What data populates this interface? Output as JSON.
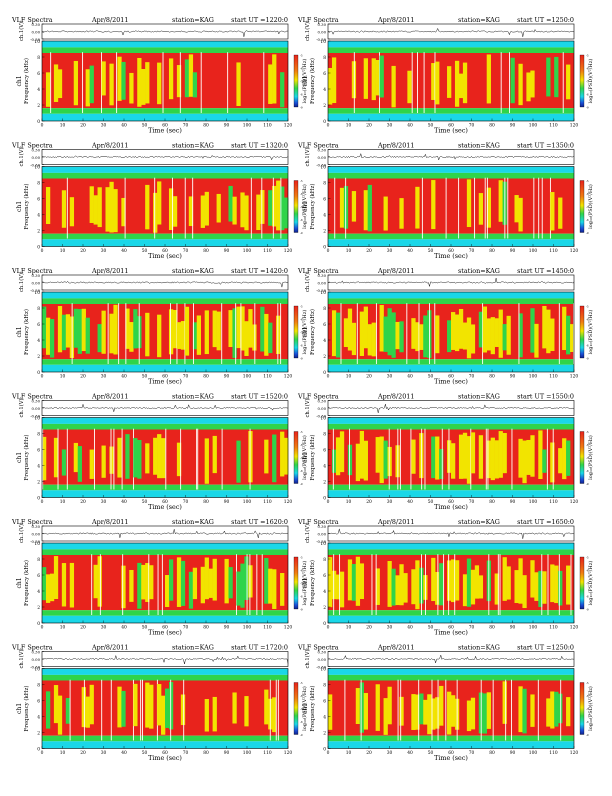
{
  "panel_header": "VLF Spectra",
  "station_label": "station=KAG",
  "start_label": "start  UT  =",
  "colorbar_label": "log₁₀(PSD)(V²/Hz)",
  "colorbar_ticks": [
    "-5",
    "-6",
    "-7",
    "-8",
    "-9"
  ],
  "colors": {
    "spec_red": "#e8231c",
    "spec_yellow": "#f2e400",
    "spec_green": "#2fd44a",
    "spec_cyan": "#1ad7e8",
    "gap_white": "#ffffff"
  },
  "chart_data": [
    {
      "type": "heatmap",
      "date": "Apr/8/2011",
      "start_ut": "1220:0",
      "xlabel": "Time (sec)",
      "ylabel_top": "ch.1(V)",
      "ylabel": "Frequency (kHz)",
      "ylabel_prefix": "ch1",
      "xlim": [
        0,
        120
      ],
      "ylim": [
        0,
        10
      ],
      "trace_ylim": [
        -0.3,
        0.3
      ],
      "x_ticks": [
        0,
        10,
        20,
        30,
        40,
        50,
        60,
        70,
        80,
        90,
        100,
        110,
        120
      ],
      "y_ticks": [
        0,
        2,
        4,
        6,
        8,
        10
      ],
      "trace_ticks": [
        "0.30",
        "0.00",
        "-0.30"
      ],
      "activity": 0.85
    },
    {
      "type": "heatmap",
      "date": "Apr/8/2011",
      "start_ut": "1250:0",
      "xlabel": "Time (sec)",
      "ylabel_top": "ch.1(V)",
      "ylabel": "Frequency (kHz)",
      "ylabel_prefix": "ch1",
      "xlim": [
        0,
        120
      ],
      "ylim": [
        0,
        10
      ],
      "trace_ylim": [
        -0.3,
        0.3
      ],
      "x_ticks": [
        0,
        10,
        20,
        30,
        40,
        50,
        60,
        70,
        80,
        90,
        100,
        110,
        120
      ],
      "y_ticks": [
        0,
        2,
        4,
        6,
        8,
        10
      ],
      "trace_ticks": [
        "0.30",
        "0.00",
        "-0.30"
      ],
      "activity": 0.85
    },
    {
      "type": "heatmap",
      "date": "Apr/8/2011",
      "start_ut": "1320:0",
      "xlabel": "Time (sec)",
      "ylabel_top": "ch.1(V)",
      "ylabel": "Frequency (kHz)",
      "ylabel_prefix": "ch1",
      "xlim": [
        0,
        120
      ],
      "ylim": [
        0,
        10
      ],
      "trace_ylim": [
        -0.3,
        0.3
      ],
      "x_ticks": [
        0,
        10,
        20,
        30,
        40,
        50,
        60,
        70,
        80,
        90,
        100,
        110,
        120
      ],
      "y_ticks": [
        0,
        2,
        4,
        6,
        8,
        10
      ],
      "trace_ticks": [
        "0.30",
        "0.00",
        "-0.30"
      ],
      "activity": 0.9
    },
    {
      "type": "heatmap",
      "date": "Apr/8/2011",
      "start_ut": "1350:0",
      "xlabel": "Time (sec)",
      "ylabel_top": "ch.1(V)",
      "ylabel": "Frequency (kHz)",
      "ylabel_prefix": "ch1",
      "xlim": [
        0,
        120
      ],
      "ylim": [
        0,
        10
      ],
      "trace_ylim": [
        -0.3,
        0.3
      ],
      "x_ticks": [
        0,
        10,
        20,
        30,
        40,
        50,
        60,
        70,
        80,
        90,
        100,
        110,
        120
      ],
      "y_ticks": [
        0,
        2,
        4,
        6,
        8,
        10
      ],
      "trace_ticks": [
        "0.30",
        "0.00",
        "-0.30"
      ],
      "activity": 0.9
    },
    {
      "type": "heatmap",
      "date": "Apr/8/2011",
      "start_ut": "1420:0",
      "xlabel": "Time (sec)",
      "ylabel_top": "ch.1(V)",
      "ylabel": "Frequency (kHz)",
      "ylabel_prefix": "ch1",
      "xlim": [
        0,
        120
      ],
      "ylim": [
        0,
        10
      ],
      "trace_ylim": [
        -0.3,
        0.3
      ],
      "x_ticks": [
        0,
        10,
        20,
        30,
        40,
        50,
        60,
        70,
        80,
        90,
        100,
        110,
        120
      ],
      "y_ticks": [
        0,
        2,
        4,
        6,
        8,
        10
      ],
      "trace_ticks": [
        "0.30",
        "0.00",
        "-0.30"
      ],
      "activity": 0.55
    },
    {
      "type": "heatmap",
      "date": "Apr/8/2011",
      "start_ut": "1450:0",
      "xlabel": "Time (sec)",
      "ylabel_top": "ch.1(V)",
      "ylabel": "Frequency (kHz)",
      "ylabel_prefix": "ch1",
      "xlim": [
        0,
        120
      ],
      "ylim": [
        0,
        10
      ],
      "trace_ylim": [
        -0.3,
        0.3
      ],
      "x_ticks": [
        0,
        10,
        20,
        30,
        40,
        50,
        60,
        70,
        80,
        90,
        100,
        110,
        120
      ],
      "y_ticks": [
        0,
        2,
        4,
        6,
        8,
        10
      ],
      "trace_ticks": [
        "0.30",
        "0.00",
        "-0.30"
      ],
      "activity": 0.55
    },
    {
      "type": "heatmap",
      "date": "Apr/8/2011",
      "start_ut": "1520:0",
      "xlabel": "Time (sec)",
      "ylabel_top": "ch.1(V)",
      "ylabel": "Frequency (kHz)",
      "ylabel_prefix": "ch1",
      "xlim": [
        0,
        120
      ],
      "ylim": [
        0,
        10
      ],
      "trace_ylim": [
        -0.3,
        0.3
      ],
      "x_ticks": [
        0,
        10,
        20,
        30,
        40,
        50,
        60,
        70,
        80,
        90,
        100,
        110,
        120
      ],
      "y_ticks": [
        0,
        2,
        4,
        6,
        8,
        10
      ],
      "trace_ticks": [
        "0.30",
        "0.00",
        "-0.30"
      ],
      "activity": 0.75
    },
    {
      "type": "heatmap",
      "date": "Apr/8/2011",
      "start_ut": "1550:0",
      "xlabel": "Time (sec)",
      "ylabel_top": "ch.1(V)",
      "ylabel": "Frequency (kHz)",
      "ylabel_prefix": "ch1",
      "xlim": [
        0,
        120
      ],
      "ylim": [
        0,
        10
      ],
      "trace_ylim": [
        -0.3,
        0.3
      ],
      "x_ticks": [
        0,
        10,
        20,
        30,
        40,
        50,
        60,
        70,
        80,
        90,
        100,
        110,
        120
      ],
      "y_ticks": [
        0,
        2,
        4,
        6,
        8,
        10
      ],
      "trace_ticks": [
        "0.30",
        "0.00",
        "-0.30"
      ],
      "activity": 0.7
    },
    {
      "type": "heatmap",
      "date": "Apr/8/2011",
      "start_ut": "1620:0",
      "xlabel": "Time (sec)",
      "ylabel_top": "ch.1(V)",
      "ylabel": "Frequency (kHz)",
      "ylabel_prefix": "ch1",
      "xlim": [
        0,
        120
      ],
      "ylim": [
        0,
        10
      ],
      "trace_ylim": [
        -0.3,
        0.3
      ],
      "x_ticks": [
        0,
        10,
        20,
        30,
        40,
        50,
        60,
        70,
        80,
        90,
        100,
        110,
        120
      ],
      "y_ticks": [
        0,
        2,
        4,
        6,
        8,
        10
      ],
      "trace_ticks": [
        "0.30",
        "0.00",
        "-0.30"
      ],
      "activity": 0.8
    },
    {
      "type": "heatmap",
      "date": "Apr/8/2011",
      "start_ut": "1650:0",
      "xlabel": "Time (sec)",
      "ylabel_top": "ch.1(V)",
      "ylabel": "Frequency (kHz)",
      "ylabel_prefix": "ch1",
      "xlim": [
        0,
        120
      ],
      "ylim": [
        0,
        10
      ],
      "trace_ylim": [
        -0.3,
        0.3
      ],
      "x_ticks": [
        0,
        10,
        20,
        30,
        40,
        50,
        60,
        70,
        80,
        90,
        100,
        110,
        120
      ],
      "y_ticks": [
        0,
        2,
        4,
        6,
        8,
        10
      ],
      "trace_ticks": [
        "0.30",
        "0.00",
        "-0.30"
      ],
      "activity": 0.6
    },
    {
      "type": "heatmap",
      "date": "Apr/8/2011",
      "start_ut": "1720:0",
      "xlabel": "Time (sec)",
      "ylabel_top": "ch.1(V)",
      "ylabel": "Frequency (kHz)",
      "ylabel_prefix": "ch1",
      "xlim": [
        0,
        120
      ],
      "ylim": [
        0,
        10
      ],
      "trace_ylim": [
        -0.3,
        0.3
      ],
      "x_ticks": [
        0,
        10,
        20,
        30,
        40,
        50,
        60,
        70,
        80,
        90,
        100,
        110,
        120
      ],
      "y_ticks": [
        0,
        2,
        4,
        6,
        8,
        10
      ],
      "trace_ticks": [
        "0.30",
        "0.00",
        "-0.30"
      ],
      "activity": 0.8
    },
    {
      "type": "heatmap",
      "date": "Apr/8/2011",
      "start_ut": "1250:0",
      "xlabel": "Time (sec)",
      "ylabel_top": "ch.1(V)",
      "ylabel": "Frequency (kHz)",
      "ylabel_prefix": "ch1",
      "xlim": [
        0,
        120
      ],
      "ylim": [
        0,
        10
      ],
      "trace_ylim": [
        -0.3,
        0.3
      ],
      "x_ticks": [
        0,
        10,
        20,
        30,
        40,
        50,
        60,
        70,
        80,
        90,
        100,
        110,
        120
      ],
      "y_ticks": [
        0,
        2,
        4,
        6,
        8,
        10
      ],
      "trace_ticks": [
        "0.30",
        "0.00",
        "-0.30"
      ],
      "activity": 0.8
    }
  ]
}
